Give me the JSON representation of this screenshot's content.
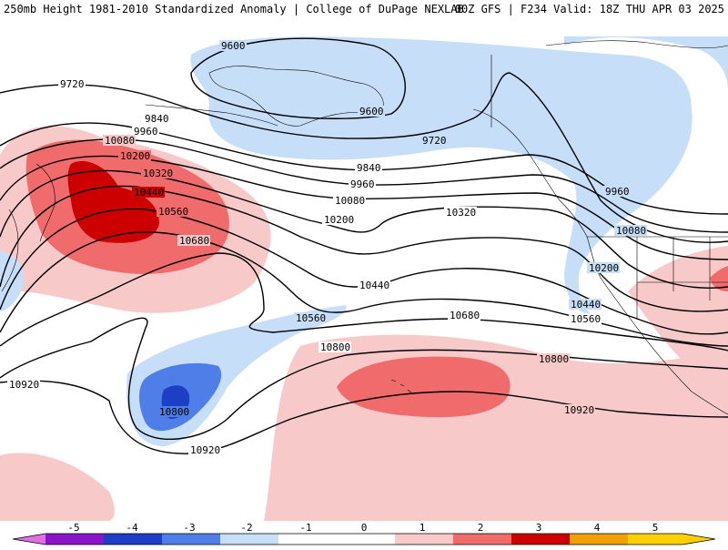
{
  "header": {
    "left": "250mb Height 1981-2010 Standardized Anomaly | College of DuPage NEXLAB",
    "right": "00Z GFS | F234 Valid: 18Z THU APR 03 2025"
  },
  "colors": {
    "neg5": "#e070e0",
    "neg4": "#8b14c8",
    "neg3": "#1d3fc6",
    "neg2": "#4f7ee8",
    "neg1": "#c6def8",
    "zero": "#ffffff",
    "pos1": "#f8c9c9",
    "pos2": "#f06c6c",
    "pos3": "#cc0000",
    "pos4": "#f0a000",
    "pos5": "#ffd000",
    "contour": "#000000",
    "coast": "#000000"
  },
  "colorbar": {
    "ticks": [
      "-5",
      "-4",
      "-3",
      "-2",
      "-1",
      "0",
      "1",
      "2",
      "3",
      "4",
      "5"
    ]
  },
  "contours": {
    "labels": [
      "9600",
      "9600",
      "9720",
      "9720",
      "9840",
      "9840",
      "9960",
      "9960",
      "9960",
      "10080",
      "10080",
      "10080",
      "10200",
      "10200",
      "10200",
      "10320",
      "10320",
      "10440",
      "10440",
      "10440",
      "10560",
      "10560",
      "10560",
      "10680",
      "10680",
      "10800",
      "10800",
      "10800",
      "10920",
      "10920",
      "10920"
    ]
  }
}
